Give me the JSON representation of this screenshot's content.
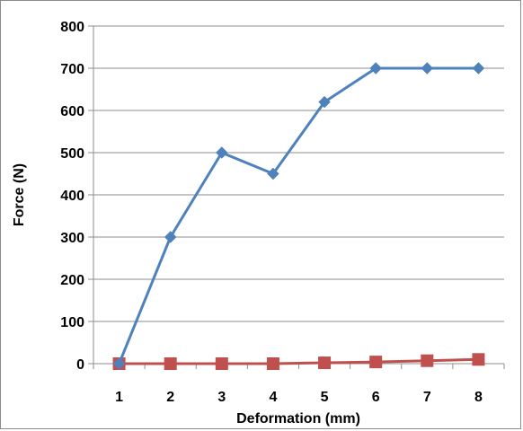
{
  "chart_data": {
    "type": "line",
    "title": "",
    "xlabel": "Deformation (mm)",
    "ylabel": "Force (N)",
    "categories": [
      "1",
      "2",
      "3",
      "4",
      "5",
      "6",
      "7",
      "8"
    ],
    "ylim": [
      0,
      800
    ],
    "yticks": [
      "0",
      "100",
      "200",
      "300",
      "400",
      "500",
      "600",
      "700",
      "800"
    ],
    "grid": "horizontal",
    "legend": "none",
    "series": [
      {
        "color": "#4f81bd",
        "marker": "diamond",
        "values": [
          0,
          300,
          500,
          450,
          620,
          700,
          700,
          700
        ]
      },
      {
        "color": "#c0504d",
        "marker": "square",
        "values": [
          0,
          0,
          0,
          0,
          2,
          4,
          7,
          10
        ]
      }
    ]
  }
}
